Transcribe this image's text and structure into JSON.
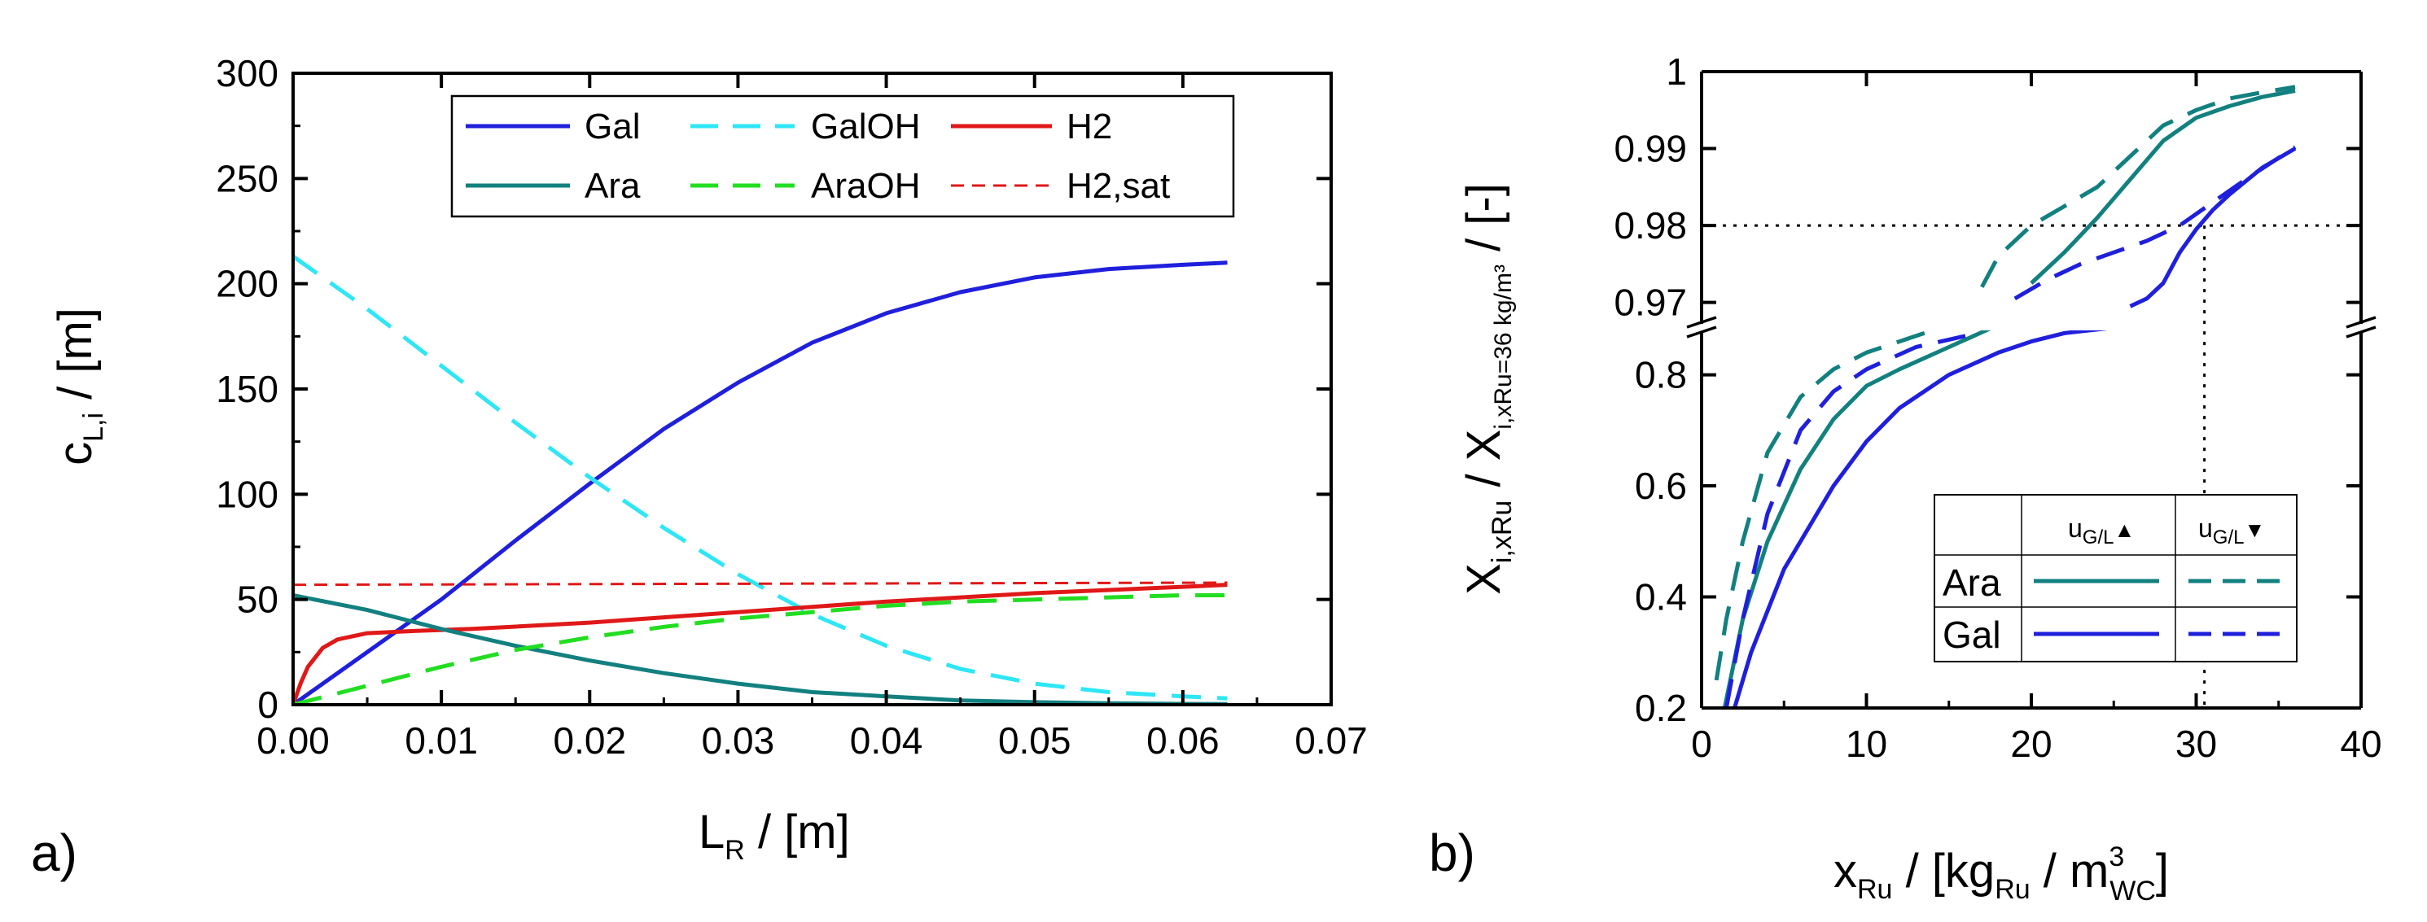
{
  "figure": {
    "panel_a_label": "a)",
    "panel_b_label": "b)"
  },
  "chart_data": [
    {
      "type": "line",
      "panel": "a)",
      "xlabel": {
        "main": "L",
        "sub": "R",
        "unit": " / [m]"
      },
      "ylabel": {
        "main": "c",
        "sub": "L,i",
        "unit": " / [m]"
      },
      "xlim": [
        0,
        0.07
      ],
      "ylim": [
        0,
        300
      ],
      "xticks": [
        "0.00",
        "0.01",
        "0.02",
        "0.03",
        "0.04",
        "0.05",
        "0.06",
        "0.07"
      ],
      "yticks": [
        "0",
        "50",
        "100",
        "150",
        "200",
        "250",
        "300"
      ],
      "legend_position": "top-right",
      "series": [
        {
          "name": "Gal",
          "color": "#1f1fdc",
          "dash": "solid",
          "x": [
            0,
            0.005,
            0.01,
            0.015,
            0.02,
            0.025,
            0.03,
            0.035,
            0.04,
            0.045,
            0.05,
            0.055,
            0.06,
            0.063
          ],
          "y": [
            0,
            25,
            50,
            78,
            105,
            131,
            153,
            172,
            186,
            196,
            203,
            207,
            209,
            210
          ]
        },
        {
          "name": "GalOH",
          "color": "#2ee6f5",
          "dash": "long",
          "x": [
            0,
            0.005,
            0.01,
            0.015,
            0.02,
            0.025,
            0.03,
            0.035,
            0.04,
            0.045,
            0.05,
            0.055,
            0.06,
            0.063
          ],
          "y": [
            213,
            188,
            161,
            134,
            108,
            84,
            62,
            43,
            28,
            17,
            10,
            6,
            4,
            3
          ]
        },
        {
          "name": "H2",
          "color": "#e01818",
          "dash": "solid",
          "x": [
            0,
            0.0005,
            0.001,
            0.002,
            0.003,
            0.005,
            0.008,
            0.012,
            0.02,
            0.03,
            0.04,
            0.05,
            0.06,
            0.063
          ],
          "y": [
            0,
            10,
            18,
            27,
            31,
            34,
            35,
            36,
            39,
            44,
            49,
            53,
            56,
            57
          ]
        },
        {
          "name": "Ara",
          "color": "#138080",
          "dash": "solid",
          "x": [
            0,
            0.005,
            0.01,
            0.015,
            0.02,
            0.025,
            0.03,
            0.035,
            0.04,
            0.045,
            0.05,
            0.055,
            0.06,
            0.063
          ],
          "y": [
            52,
            45,
            36,
            28,
            21,
            15,
            10,
            6,
            4,
            2,
            1.2,
            0.7,
            0.4,
            0.3
          ]
        },
        {
          "name": "AraOH",
          "color": "#22dd22",
          "dash": "long",
          "x": [
            0,
            0.005,
            0.01,
            0.015,
            0.02,
            0.025,
            0.03,
            0.035,
            0.04,
            0.045,
            0.05,
            0.055,
            0.06,
            0.063
          ],
          "y": [
            0,
            9,
            18,
            26,
            32,
            37,
            41,
            44,
            47,
            49,
            50,
            51,
            52,
            52
          ]
        },
        {
          "name": "H2,sat",
          "color": "#e01818",
          "dash": "short",
          "x": [
            0,
            0.063
          ],
          "y": [
            57,
            58
          ]
        }
      ]
    },
    {
      "type": "line",
      "panel": "b)",
      "broken_axis": true,
      "xlabel": {
        "main": "x",
        "sub": "Ru",
        "unit_pre": " / [kg",
        "unit_sub": "Ru",
        "unit_mid": " / m",
        "unit_sup": "3",
        "unit_sub2": "WC",
        "unit_post": "]"
      },
      "ylabel": {
        "main": "X",
        "sub": "i,xRu",
        "slash": " / X",
        "sub2": "i,xRu=36 kg/m³",
        "unit": " / [-]"
      },
      "xlim": [
        0,
        40
      ],
      "ylim_lower": [
        0.2,
        0.88
      ],
      "ylim_upper": [
        0.967,
        1.0
      ],
      "xticks": [
        "0",
        "10",
        "20",
        "30",
        "40"
      ],
      "yticks_lower": [
        "0.2",
        "0.4",
        "0.6",
        "0.8"
      ],
      "yticks_upper": [
        "0.97",
        "0.98",
        "0.99",
        "1"
      ],
      "reference_lines": {
        "y": 0.98,
        "x": 30.5
      },
      "table": {
        "header_up": "u",
        "header_up_sub": "G/L",
        "header_up_arrow": "▲",
        "header_down": "u",
        "header_down_sub": "G/L",
        "header_down_arrow": "▼",
        "rows": [
          "Ara",
          "Gal"
        ]
      },
      "series": [
        {
          "name": "Ara u_G/L up",
          "color": "#138080",
          "dash": "solid",
          "x": [
            1.4,
            2.5,
            4,
            6,
            8,
            10,
            12,
            15,
            18,
            20,
            22,
            24,
            26,
            28,
            30,
            32,
            34,
            36
          ],
          "y": [
            0.2,
            0.36,
            0.5,
            0.63,
            0.72,
            0.78,
            0.81,
            0.85,
            0.89,
            0.9725,
            0.9765,
            0.981,
            0.986,
            0.991,
            0.994,
            0.9955,
            0.9967,
            0.9975
          ]
        },
        {
          "name": "Ara u_G/L down",
          "color": "#138080",
          "dash": "long",
          "x": [
            0.9,
            1.5,
            2.5,
            4,
            6,
            8,
            10,
            14,
            17,
            18,
            20,
            22,
            24,
            26,
            28,
            30,
            32,
            34,
            36
          ],
          "y": [
            0.25,
            0.36,
            0.5,
            0.66,
            0.76,
            0.81,
            0.84,
            0.88,
            0.972,
            0.976,
            0.98,
            0.9825,
            0.985,
            0.989,
            0.993,
            0.995,
            0.9965,
            0.9973,
            0.998
          ]
        },
        {
          "name": "Gal u_G/L up",
          "color": "#1f1fdc",
          "dash": "solid",
          "x": [
            2,
            3,
            5,
            8,
            10,
            12,
            15,
            18,
            20,
            22,
            25,
            26,
            27,
            28,
            29,
            30,
            31,
            32,
            34,
            36
          ],
          "y": [
            0.2,
            0.3,
            0.45,
            0.6,
            0.68,
            0.74,
            0.8,
            0.84,
            0.86,
            0.875,
            0.885,
            0.9695,
            0.9705,
            0.9725,
            0.9765,
            0.9795,
            0.982,
            0.984,
            0.9875,
            0.99
          ]
        },
        {
          "name": "Gal u_G/L down",
          "color": "#1f1fdc",
          "dash": "long",
          "x": [
            1.5,
            2.5,
            4,
            6,
            8,
            10,
            13,
            16,
            19,
            21,
            23,
            25,
            27,
            29,
            31,
            33,
            36
          ],
          "y": [
            0.2,
            0.36,
            0.55,
            0.7,
            0.77,
            0.81,
            0.85,
            0.87,
            0.9705,
            0.973,
            0.975,
            0.9765,
            0.978,
            0.98,
            0.983,
            0.986,
            0.9902
          ]
        }
      ]
    }
  ]
}
